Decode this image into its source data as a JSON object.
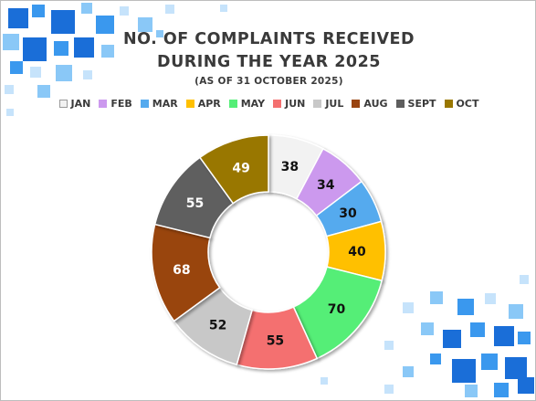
{
  "chart_data": {
    "type": "pie",
    "variant": "donut",
    "title_lines": [
      "NO. OF COMPLAINTS RECEIVED",
      "DURING THE YEAR 2025"
    ],
    "subtitle": "(AS OF 31 OCTOBER 2025)",
    "legend_position": "top",
    "categories": [
      "JAN",
      "FEB",
      "MAR",
      "APR",
      "MAY",
      "JUN",
      "JUL",
      "AUG",
      "SEPT",
      "OCT"
    ],
    "values": [
      38,
      34,
      30,
      40,
      70,
      55,
      52,
      68,
      55,
      49
    ],
    "colors": [
      "#f2f2f2",
      "#cc99ee",
      "#55aaee",
      "#ffc000",
      "#55ee77",
      "#f47070",
      "#c8c8c8",
      "#994411",
      "#5e5e5e",
      "#997700"
    ],
    "label_colors": [
      "#111111",
      "#111111",
      "#111111",
      "#111111",
      "#111111",
      "#111111",
      "#111111",
      "#ffffff",
      "#ffffff",
      "#ffffff"
    ]
  },
  "decor": {
    "tile_colors": [
      "#1a6ed8",
      "#3a98ee",
      "#8ac8f7",
      "#c6e3fb"
    ]
  }
}
